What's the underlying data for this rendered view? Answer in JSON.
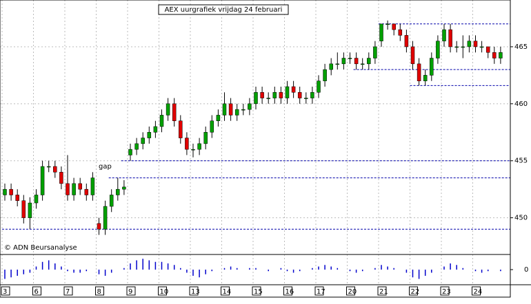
{
  "chart_data": {
    "type": "candlestick",
    "title": "AEX uurgrafiek vrijdag 24 februari",
    "annotation": "gap",
    "credit": "© ADN Beursanalyse",
    "categories": [
      "3",
      null,
      null,
      null,
      null,
      "6",
      null,
      null,
      null,
      null,
      "7",
      null,
      null,
      null,
      null,
      "8",
      null,
      null,
      null,
      null,
      "9",
      null,
      null,
      null,
      null,
      "10",
      null,
      null,
      null,
      null,
      "13",
      null,
      null,
      null,
      null,
      "14",
      null,
      null,
      null,
      null,
      "15",
      null,
      null,
      null,
      null,
      "16",
      null,
      null,
      null,
      null,
      "17",
      null,
      null,
      null,
      null,
      "20",
      null,
      null,
      null,
      null,
      "21",
      null,
      null,
      null,
      null,
      "22",
      null,
      null,
      null,
      null,
      "23",
      null,
      null,
      null,
      null,
      "24",
      null,
      null,
      null,
      null
    ],
    "open": [
      452,
      452.5,
      452,
      451.5,
      450,
      451.3,
      452,
      454.5,
      454.5,
      454,
      453,
      452,
      453,
      452.5,
      452,
      449.5,
      449,
      451,
      452,
      452.5,
      455.5,
      456,
      456.5,
      457,
      457.5,
      458,
      459,
      460,
      458.5,
      457,
      456,
      456,
      456.5,
      457.5,
      458.5,
      459,
      460,
      459,
      459.5,
      459.5,
      460,
      461,
      460.5,
      460.5,
      461,
      460.5,
      461.5,
      461,
      460.5,
      460.5,
      461,
      462,
      463,
      463.5,
      463.5,
      464,
      464,
      463.5,
      463.5,
      464,
      465.5,
      467,
      467,
      466.5,
      466,
      465,
      463.5,
      462,
      462.5,
      464,
      465.5,
      466.5,
      465,
      465,
      465,
      465.5,
      465,
      465,
      464.5,
      464
    ],
    "high": [
      453,
      453,
      452.5,
      452,
      451.8,
      452.5,
      455,
      455,
      455,
      454.5,
      455.5,
      453.5,
      453.5,
      453,
      454,
      450,
      451.5,
      452.5,
      453.5,
      453.3,
      456.5,
      457,
      457.5,
      458,
      458.5,
      459.5,
      460.5,
      460.5,
      459,
      457.5,
      456.5,
      457,
      458,
      459,
      459.5,
      461,
      460.5,
      460,
      460,
      460.5,
      461.5,
      461.5,
      461,
      461.5,
      461.5,
      462,
      462,
      461.5,
      461,
      461.5,
      462.5,
      463.5,
      464,
      464.5,
      464.5,
      464.5,
      464.5,
      464,
      464.5,
      465.5,
      467,
      467.3,
      467,
      467,
      466.5,
      465.5,
      464,
      463,
      464.5,
      466,
      467,
      467,
      465.5,
      466,
      466,
      466,
      465.5,
      465,
      465,
      465
    ],
    "low": [
      451.5,
      451.5,
      451,
      449.5,
      449,
      450.8,
      451.5,
      454,
      453.5,
      452.5,
      451.5,
      451.5,
      452,
      451.5,
      451.5,
      448.5,
      448.5,
      450.5,
      451.5,
      452,
      455,
      455.5,
      456,
      456.5,
      457,
      457.5,
      458.5,
      458,
      456.5,
      455.5,
      455.3,
      455.5,
      456,
      457,
      458,
      458.5,
      458.5,
      458.5,
      459,
      459,
      459.5,
      460,
      460,
      460,
      460,
      460,
      460.5,
      460,
      460,
      460,
      460.5,
      461.5,
      462.5,
      463,
      463,
      463.5,
      463,
      463,
      463,
      463.5,
      465,
      466.5,
      466,
      465.5,
      464.5,
      463,
      461.6,
      461.6,
      462,
      463.5,
      465,
      464.5,
      464.5,
      464,
      464.5,
      464.5,
      464.5,
      464,
      463.5,
      463.5
    ],
    "close": [
      452.5,
      452,
      451.5,
      450,
      451.3,
      452,
      454.5,
      454.5,
      454,
      453,
      452,
      453,
      452.5,
      452,
      453.5,
      449,
      451,
      452,
      452.5,
      452.7,
      456,
      456.5,
      457,
      457.5,
      458,
      459,
      460,
      458.5,
      457,
      456,
      456,
      456.5,
      457.5,
      458.5,
      459,
      460,
      459,
      459.5,
      459.5,
      460,
      461,
      460.5,
      460.5,
      461,
      460.5,
      461.5,
      461,
      460.5,
      460.5,
      461,
      462,
      463,
      463.5,
      463.5,
      464,
      464,
      463.5,
      463.5,
      464,
      465,
      467,
      467,
      466.5,
      466,
      465,
      463.5,
      462,
      462.5,
      464,
      465.5,
      466.5,
      465,
      465,
      465,
      465.5,
      465,
      465,
      464.5,
      464,
      464.5
    ],
    "up_color": "#00a000",
    "down_color": "#e00000",
    "ylim": [
      446.9,
      469.1
    ],
    "yticks": [
      450,
      455,
      460,
      465
    ],
    "grid": true,
    "levels": [
      {
        "value": 455,
        "from": 19
      },
      {
        "value": 453.5,
        "from": 17
      },
      {
        "value": 449,
        "from": 0
      },
      {
        "value": 467,
        "from": 60
      },
      {
        "value": 463,
        "from": 56
      },
      {
        "value": 461.6,
        "from": 65
      }
    ],
    "oscillator": {
      "color": "#0000cc",
      "ylim": [
        -8,
        8
      ],
      "yticks": [
        0
      ],
      "values": [
        -6,
        -5,
        -4,
        -3,
        -2,
        2,
        5,
        6,
        4,
        2,
        -1,
        -2,
        -2,
        -1,
        0,
        -3,
        -4,
        -2,
        0,
        1,
        4,
        6,
        7,
        6,
        5,
        5,
        4,
        3,
        1,
        -2,
        -4,
        -5,
        -3,
        -1,
        0,
        1,
        2,
        1,
        0,
        1,
        1,
        0,
        -1,
        0,
        1,
        -1,
        -2,
        -1,
        0,
        1,
        2,
        3,
        2,
        1,
        0,
        -1,
        -2,
        -1,
        0,
        1,
        3,
        2,
        1,
        0,
        -2,
        -5,
        -6,
        -4,
        -2,
        0,
        2,
        4,
        3,
        1,
        0,
        -1,
        -2,
        -1,
        0,
        -1
      ]
    }
  }
}
